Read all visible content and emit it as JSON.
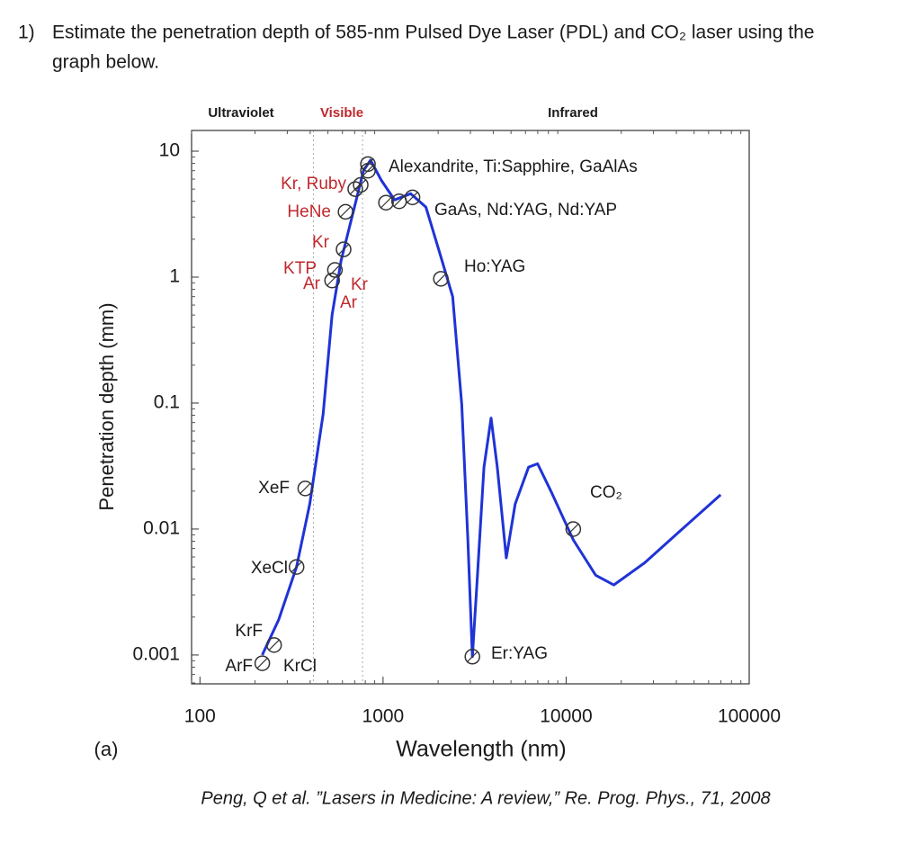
{
  "question": {
    "number": "1)",
    "lines": [
      "Estimate the penetration depth of 585-nm Pulsed Dye Laser (PDL) and CO₂ laser using  the",
      "graph below."
    ]
  },
  "chart_data": {
    "type": "line",
    "xscale": "log",
    "yscale": "log",
    "regions": [
      {
        "text": "Ultraviolet",
        "color": "#1a1a1a"
      },
      {
        "text": "Visible",
        "color": "#c0282d"
      },
      {
        "text": "Infrared",
        "color": "#1a1a1a"
      }
    ],
    "region_bounds": [
      417,
      773
    ],
    "xlabel": "Wavelength (nm)",
    "ylabel": "Penetration depth (mm)",
    "panel": "(a)",
    "xlim": [
      90,
      100000
    ],
    "xticks": [
      100,
      1000,
      10000,
      100000
    ],
    "ylim": [
      0.00059,
      14.6
    ],
    "yticks": [
      10,
      1,
      0.1,
      0.01,
      0.001
    ],
    "series": [
      {
        "color": "#1f33d6",
        "x": [
          219,
          269,
          337,
          398,
          471,
          527,
          590,
          698,
          782,
          855,
          977,
          1156,
          1416,
          1713,
          2028,
          2400,
          2690,
          2907,
          3076,
          3255,
          3557,
          3890,
          4207,
          4710,
          5270,
          6240,
          6980,
          8260,
          10940,
          14500,
          18200,
          26900,
          42100,
          69800
        ],
        "values": [
          0.001,
          0.0019,
          0.005,
          0.0158,
          0.082,
          0.5,
          1.35,
          3.6,
          7.0,
          8.5,
          5.9,
          4.1,
          4.6,
          3.6,
          1.6,
          0.7,
          0.097,
          0.0082,
          0.00097,
          0.0036,
          0.031,
          0.076,
          0.031,
          0.0059,
          0.0158,
          0.031,
          0.033,
          0.02,
          0.0082,
          0.0043,
          0.0036,
          0.0054,
          0.0097,
          0.0187
        ]
      }
    ],
    "markers": {
      "x": [
        219,
        254,
        337,
        376,
        527,
        546,
        609,
        624,
        705,
        755,
        827,
        827,
        1038,
        1224,
        1448,
        2070,
        3076,
        10940
      ],
      "y": [
        0.00086,
        0.0012,
        0.005,
        0.021,
        0.94,
        1.14,
        1.66,
        3.3,
        5.0,
        5.4,
        7.9,
        7.0,
        3.9,
        4.0,
        4.3,
        0.97,
        0.00097,
        0.01
      ]
    },
    "annotations": [
      {
        "text": "Kr, Ruby",
        "color": "#c0282d"
      },
      {
        "text": "HeNe",
        "color": "#c0282d"
      },
      {
        "text": "Kr",
        "color": "#c0282d"
      },
      {
        "text": "KTP",
        "color": "#c0282d"
      },
      {
        "text": "Ar",
        "color": "#c0282d"
      },
      {
        "text": "Kr",
        "color": "#c0282d"
      },
      {
        "text": "Ar",
        "color": "#c0282d"
      },
      {
        "text": "XeF",
        "color": "#1a1a1a"
      },
      {
        "text": "XeCl",
        "color": "#1a1a1a"
      },
      {
        "text": "KrF",
        "color": "#1a1a1a"
      },
      {
        "text": "ArF",
        "color": "#1a1a1a"
      },
      {
        "text": "KrCl",
        "color": "#1a1a1a"
      },
      {
        "text": "Alexandrite, Ti:Sapphire, GaAlAs",
        "color": "#1a1a1a"
      },
      {
        "text": "GaAs, Nd:YAG, Nd:YAP",
        "color": "#1a1a1a"
      },
      {
        "text": "Ho:YAG",
        "color": "#1a1a1a"
      },
      {
        "text": "Er:YAG",
        "color": "#1a1a1a"
      },
      {
        "text": "CO₂",
        "color": "#1a1a1a"
      }
    ]
  },
  "caption": "Peng, Q et al. ”Lasers in Medicine: A review,” Re. Prog. Phys., 71, 2008"
}
